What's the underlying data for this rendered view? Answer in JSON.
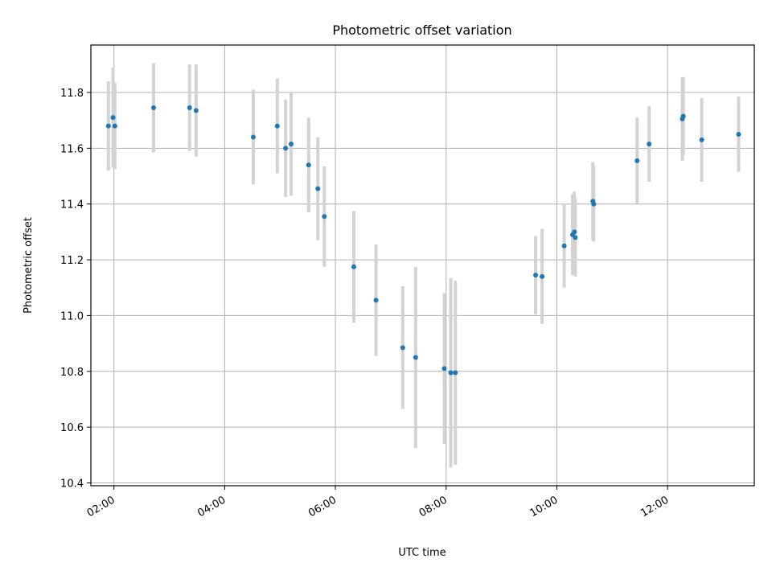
{
  "chart_data": {
    "type": "scatter",
    "title": "Photometric offset variation",
    "xlabel": "UTC time",
    "ylabel": "Photometric offset",
    "x_unit": "time",
    "xlim": [
      "01:35",
      "13:34"
    ],
    "ylim": [
      10.39,
      11.97
    ],
    "x_ticks": [
      "02:00",
      "04:00",
      "06:00",
      "08:00",
      "10:00",
      "12:00"
    ],
    "y_ticks": [
      10.4,
      10.6,
      10.8,
      11.0,
      11.2,
      11.4,
      11.6,
      11.8
    ],
    "y_tick_labels": [
      "10.4",
      "10.6",
      "10.8",
      "11.0",
      "11.2",
      "11.4",
      "11.6",
      "11.8"
    ],
    "grid": true,
    "point_color": "#1f77b4",
    "errorbar_color": "#d3d3d3",
    "points": [
      {
        "x": "01:54",
        "y": 11.68,
        "yerr": 0.16
      },
      {
        "x": "01:59",
        "y": 11.71,
        "yerr": 0.18
      },
      {
        "x": "02:01",
        "y": 11.68,
        "yerr": 0.155
      },
      {
        "x": "02:43",
        "y": 11.745,
        "yerr": 0.16
      },
      {
        "x": "03:22",
        "y": 11.745,
        "yerr": 0.155
      },
      {
        "x": "03:29",
        "y": 11.735,
        "yerr": 0.165
      },
      {
        "x": "04:31",
        "y": 11.64,
        "yerr": 0.17
      },
      {
        "x": "04:57",
        "y": 11.68,
        "yerr": 0.17
      },
      {
        "x": "05:06",
        "y": 11.6,
        "yerr": 0.175
      },
      {
        "x": "05:12",
        "y": 11.615,
        "yerr": 0.185
      },
      {
        "x": "05:31",
        "y": 11.54,
        "yerr": 0.17
      },
      {
        "x": "05:41",
        "y": 11.455,
        "yerr": 0.185
      },
      {
        "x": "05:48",
        "y": 11.355,
        "yerr": 0.18
      },
      {
        "x": "06:20",
        "y": 11.175,
        "yerr": 0.2
      },
      {
        "x": "06:44",
        "y": 11.055,
        "yerr": 0.2
      },
      {
        "x": "07:13",
        "y": 10.885,
        "yerr": 0.22
      },
      {
        "x": "07:27",
        "y": 10.85,
        "yerr": 0.325
      },
      {
        "x": "07:58",
        "y": 10.81,
        "yerr": 0.27
      },
      {
        "x": "08:05",
        "y": 10.795,
        "yerr": 0.34
      },
      {
        "x": "08:10",
        "y": 10.795,
        "yerr": 0.33
      },
      {
        "x": "09:37",
        "y": 11.145,
        "yerr": 0.14
      },
      {
        "x": "09:44",
        "y": 11.14,
        "yerr": 0.17
      },
      {
        "x": "10:08",
        "y": 11.25,
        "yerr": 0.15
      },
      {
        "x": "10:17",
        "y": 11.29,
        "yerr": 0.145
      },
      {
        "x": "10:19",
        "y": 11.3,
        "yerr": 0.145
      },
      {
        "x": "10:20",
        "y": 11.28,
        "yerr": 0.14
      },
      {
        "x": "10:39",
        "y": 11.41,
        "yerr": 0.14
      },
      {
        "x": "10:40",
        "y": 11.4,
        "yerr": 0.135
      },
      {
        "x": "11:27",
        "y": 11.555,
        "yerr": 0.155
      },
      {
        "x": "11:40",
        "y": 11.615,
        "yerr": 0.135
      },
      {
        "x": "12:16",
        "y": 11.705,
        "yerr": 0.15
      },
      {
        "x": "12:17",
        "y": 11.715,
        "yerr": 0.14
      },
      {
        "x": "12:37",
        "y": 11.63,
        "yerr": 0.15
      },
      {
        "x": "13:17",
        "y": 11.65,
        "yerr": 0.135
      }
    ]
  }
}
